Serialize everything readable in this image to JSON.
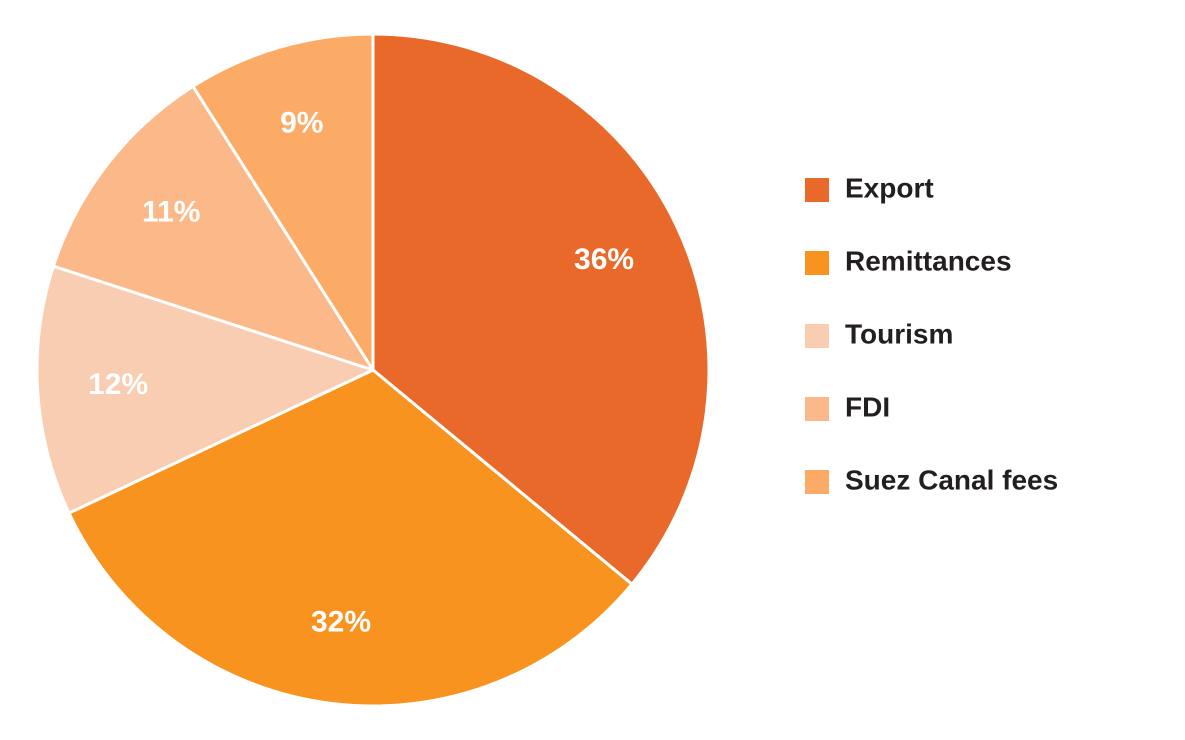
{
  "chart_data": {
    "type": "pie",
    "categories": [
      "Export",
      "Remittances",
      "Tourism",
      "FDI",
      "Suez Canal fees"
    ],
    "values": [
      36,
      32,
      12,
      11,
      9
    ],
    "value_labels": [
      "36%",
      "32%",
      "12%",
      "11%",
      "9%"
    ],
    "colors": [
      "#e9692a",
      "#f7931e",
      "#f9cdb1",
      "#fbb98a",
      "#fbab66"
    ],
    "legend": "right"
  }
}
